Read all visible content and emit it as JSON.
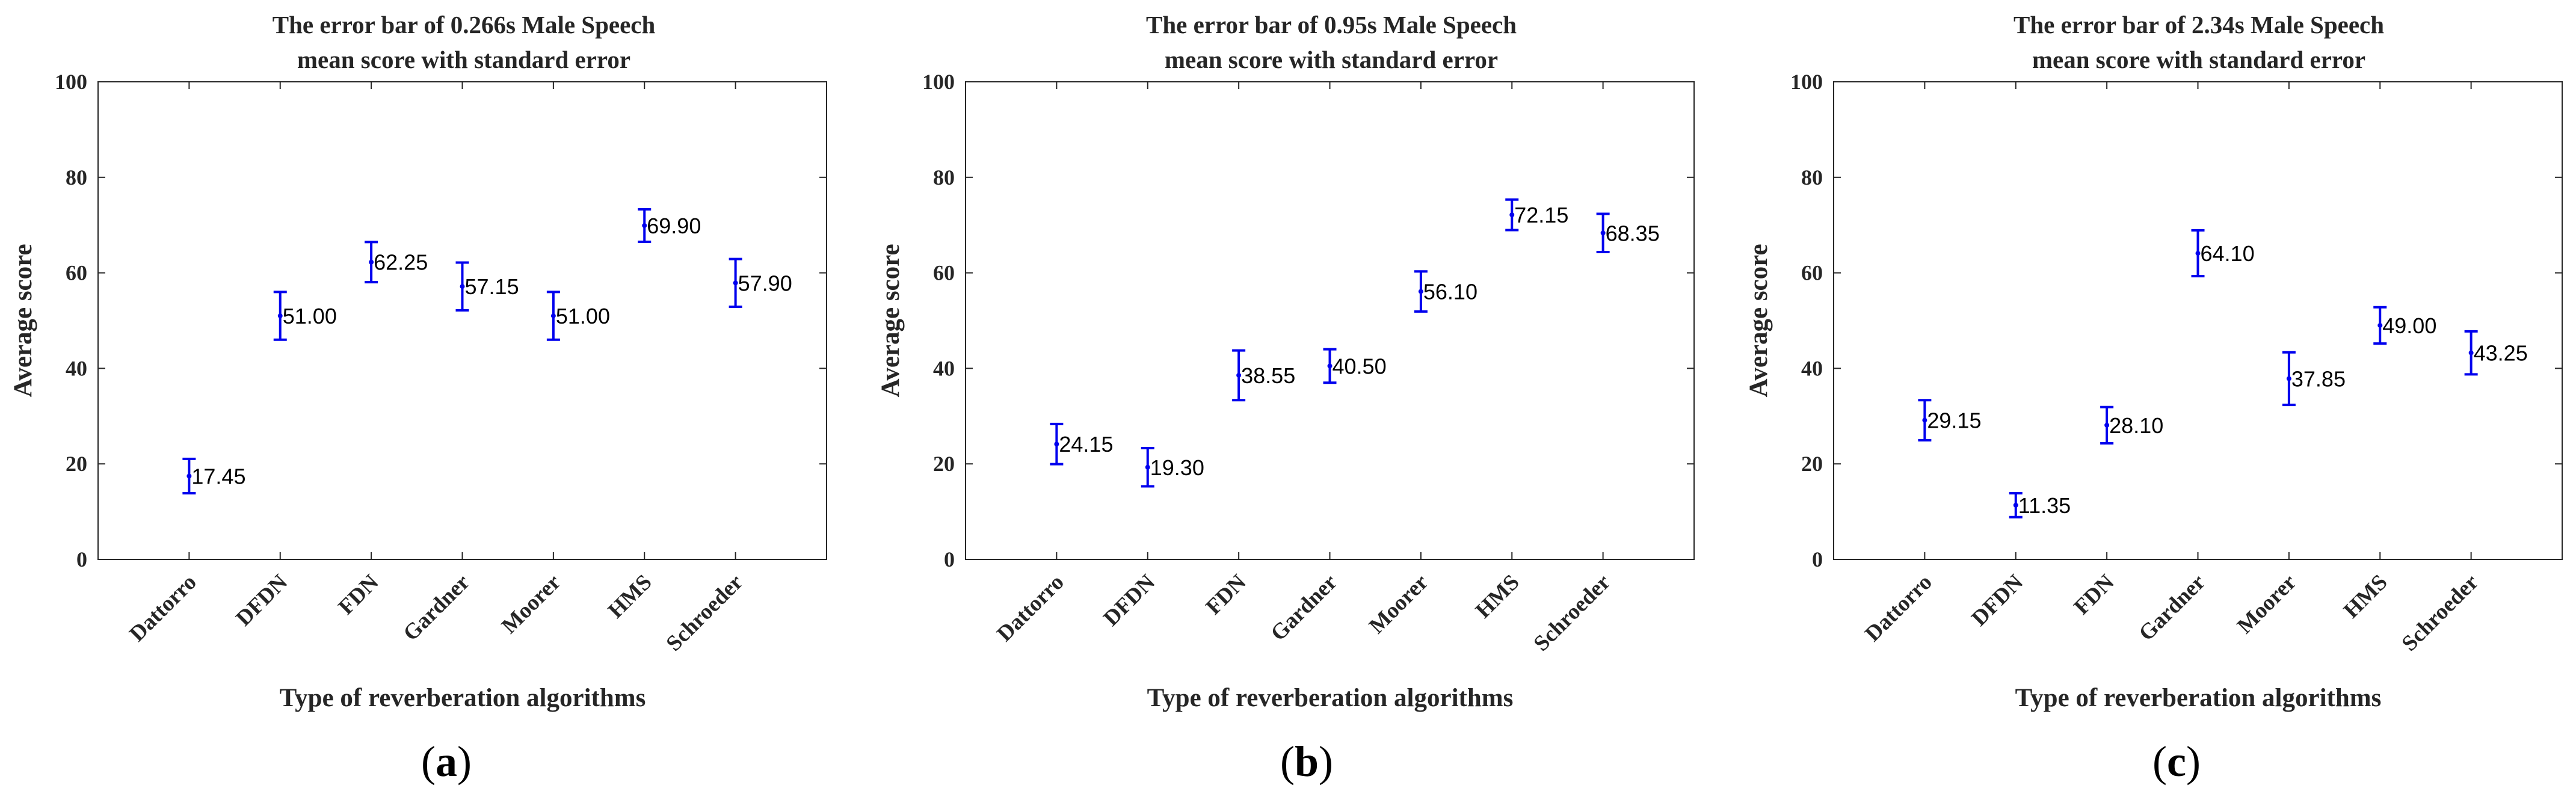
{
  "colors": {
    "errorbar": "#0000ee",
    "axis": "#262626"
  },
  "chart_data": [
    {
      "type": "errorbar",
      "panel_label": "(a)",
      "panel_letter": "a",
      "title": [
        "The error bar of 0.266s Male Speech",
        "mean score with standard error"
      ],
      "xlabel": "Type of reverberation algorithms",
      "ylabel": "Average score",
      "ylim": [
        0,
        100
      ],
      "yticks": [
        0,
        20,
        40,
        60,
        80,
        100
      ],
      "categories": [
        "Dattorro",
        "DFDN",
        "FDN",
        "Gardner",
        "Moorer",
        "HMS",
        "Schroeder"
      ],
      "values": [
        17.45,
        51.0,
        62.25,
        57.15,
        51.0,
        69.9,
        57.9
      ],
      "value_labels": [
        "17.45",
        "51.00",
        "62.25",
        "57.15",
        "51.00",
        "69.90",
        "57.90"
      ],
      "errors": [
        3.6,
        5.0,
        4.2,
        5.0,
        5.0,
        3.4,
        5.0
      ]
    },
    {
      "type": "errorbar",
      "panel_label": "(b)",
      "panel_letter": "b",
      "title": [
        "The error bar of 0.95s Male Speech",
        "mean score with standard error"
      ],
      "xlabel": "Type of reverberation algorithms",
      "ylabel": "Average score",
      "ylim": [
        0,
        100
      ],
      "yticks": [
        0,
        20,
        40,
        60,
        80,
        100
      ],
      "categories": [
        "Dattorro",
        "DFDN",
        "FDN",
        "Gardner",
        "Moorer",
        "HMS",
        "Schroeder"
      ],
      "values": [
        24.15,
        19.3,
        38.55,
        40.5,
        56.1,
        72.15,
        68.35
      ],
      "value_labels": [
        "24.15",
        "19.30",
        "38.55",
        "40.50",
        "56.10",
        "72.15",
        "68.35"
      ],
      "errors": [
        4.2,
        4.0,
        5.2,
        3.5,
        4.2,
        3.2,
        4.0
      ]
    },
    {
      "type": "errorbar",
      "panel_label": "(c)",
      "panel_letter": "c",
      "title": [
        "The error bar of 2.34s Male Speech",
        "mean score with standard error"
      ],
      "xlabel": "Type of reverberation algorithms",
      "ylabel": "Average score",
      "ylim": [
        0,
        100
      ],
      "yticks": [
        0,
        20,
        40,
        60,
        80,
        100
      ],
      "categories": [
        "Dattorro",
        "DFDN",
        "FDN",
        "Gardner",
        "Moorer",
        "HMS",
        "Schroeder"
      ],
      "values": [
        29.15,
        11.35,
        28.1,
        64.1,
        37.85,
        49.0,
        43.25
      ],
      "value_labels": [
        "29.15",
        "11.35",
        "28.10",
        "64.10",
        "37.85",
        "49.00",
        "43.25"
      ],
      "errors": [
        4.2,
        2.5,
        3.8,
        4.8,
        5.5,
        3.8,
        4.5
      ]
    }
  ]
}
